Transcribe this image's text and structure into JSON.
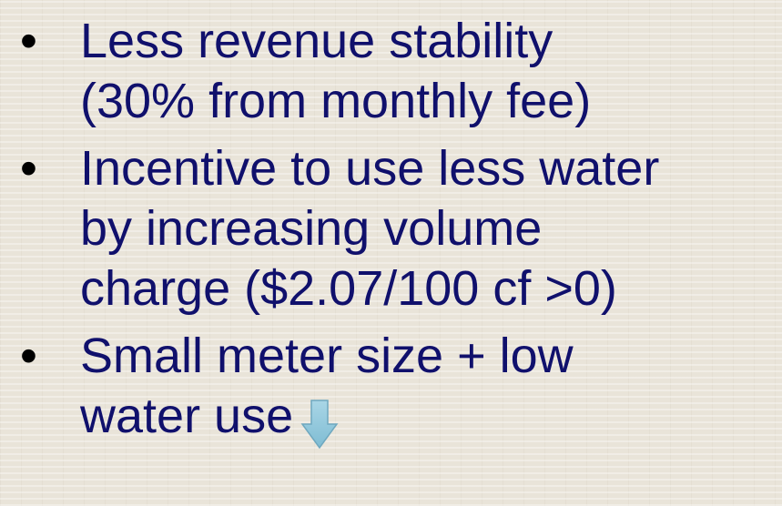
{
  "bullets": [
    {
      "lines": [
        "Less revenue stability",
        "(30% from monthly fee)"
      ]
    },
    {
      "lines": [
        "Incentive to use less water",
        "by increasing volume",
        "charge ($2.07/100 cf >0)"
      ]
    },
    {
      "lines": [
        "Small meter size + low",
        "water use"
      ]
    }
  ]
}
